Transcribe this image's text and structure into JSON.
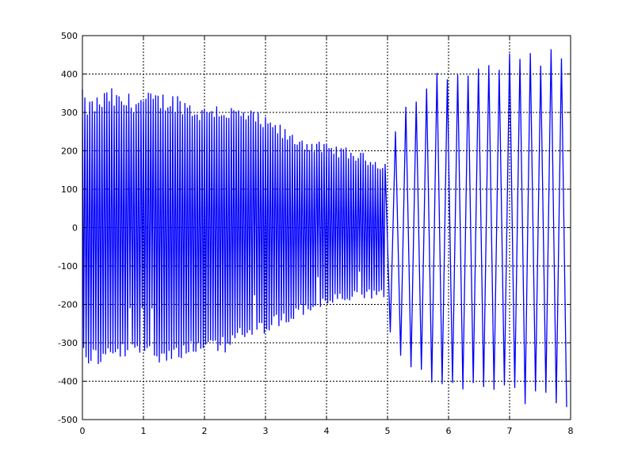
{
  "chart_data": {
    "type": "line",
    "title": "",
    "xlabel": "",
    "ylabel": "",
    "xlim": [
      0,
      8
    ],
    "ylim": [
      -500,
      500
    ],
    "x_ticks": [
      "0",
      "1",
      "2",
      "3",
      "4",
      "5",
      "6",
      "7",
      "8"
    ],
    "y_ticks": [
      "-500",
      "-400",
      "-300",
      "-200",
      "-100",
      "0",
      "100",
      "200",
      "300",
      "400",
      "500"
    ],
    "grid": true,
    "legend": "none",
    "series": [
      {
        "color": "#0000ff",
        "envelope": {
          "x": [
            0,
            0.02,
            0.1,
            0.3,
            0.45,
            0.6,
            0.8,
            1.0,
            1.2,
            1.4,
            1.6,
            1.8,
            2.0,
            2.1,
            2.3,
            2.5,
            2.7,
            2.9,
            3.0,
            3.2,
            3.4,
            3.6,
            3.8,
            4.0,
            4.2,
            4.4,
            4.6,
            4.8,
            4.95,
            5.05,
            5.2,
            5.4,
            5.6,
            5.8,
            6.0,
            6.2,
            6.5,
            6.8,
            7.0,
            7.2,
            7.5,
            7.8,
            8.0
          ],
          "upper": [
            380,
            340,
            335,
            350,
            368,
            350,
            352,
            353,
            355,
            353,
            351,
            330,
            318,
            335,
            325,
            318,
            312,
            300,
            288,
            275,
            250,
            240,
            228,
            218,
            215,
            205,
            195,
            182,
            172,
            250,
            300,
            350,
            390,
            410,
            420,
            435,
            445,
            452,
            458,
            462,
            465,
            470,
            475
          ],
          "lower": [
            -340,
            -350,
            -360,
            -365,
            -358,
            -352,
            -350,
            -350,
            -352,
            -350,
            -348,
            -340,
            -338,
            -345,
            -330,
            -310,
            -300,
            -290,
            -275,
            -265,
            -250,
            -232,
            -218,
            -208,
            -200,
            -195,
            -190,
            -188,
            -185,
            -280,
            -340,
            -390,
            -410,
            -420,
            -425,
            -430,
            -440,
            -450,
            -458,
            -462,
            -465,
            -468,
            -470
          ]
        },
        "carrier_period_early": 0.04,
        "burst_period_late": 0.17
      }
    ]
  }
}
